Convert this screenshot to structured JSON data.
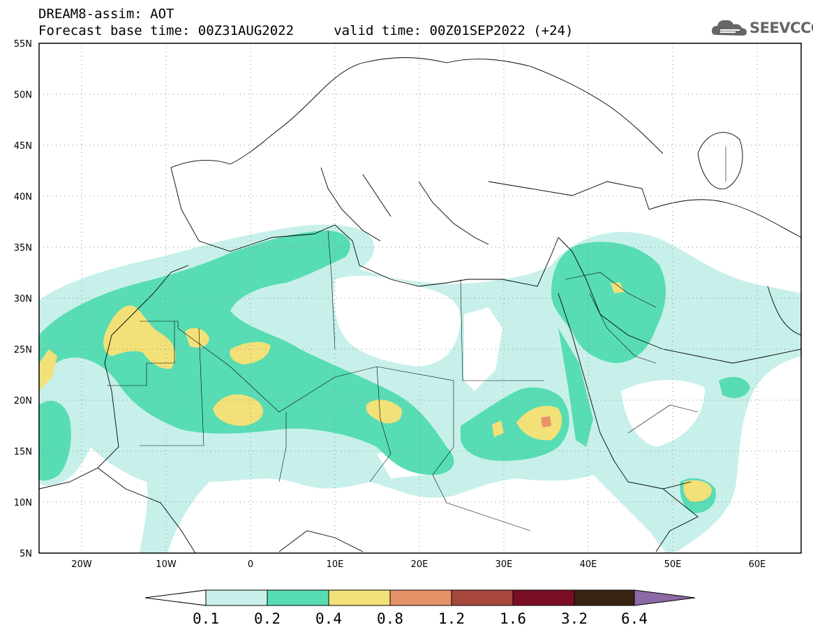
{
  "header": {
    "title": "DREAM8-assim: AOT",
    "subtitle": "Forecast base time: 00Z31AUG2022     valid time: 00Z01SEP2022 (+24)"
  },
  "logo": {
    "text": "SEEVCCC",
    "icon": "cloud-icon"
  },
  "map": {
    "lat_labels": [
      "55N",
      "50N",
      "45N",
      "40N",
      "35N",
      "30N",
      "25N",
      "20N",
      "15N",
      "10N",
      "5N"
    ],
    "lon_labels": [
      "20W",
      "10W",
      "0",
      "10E",
      "20E",
      "30E",
      "40E",
      "50E",
      "60E"
    ],
    "lon_range": [
      -25,
      65
    ],
    "lat_range": [
      5,
      55
    ],
    "grid": "dotted"
  },
  "colorbar": {
    "levels": [
      "0.1",
      "0.2",
      "0.4",
      "0.8",
      "1.2",
      "1.6",
      "3.2",
      "6.4"
    ],
    "colors": [
      "#ffffff",
      "#c8f0ea",
      "#58dcb4",
      "#f2e178",
      "#e8926a",
      "#a8483c",
      "#7c0d26",
      "#3a2412",
      "#8c6aa6"
    ]
  }
}
